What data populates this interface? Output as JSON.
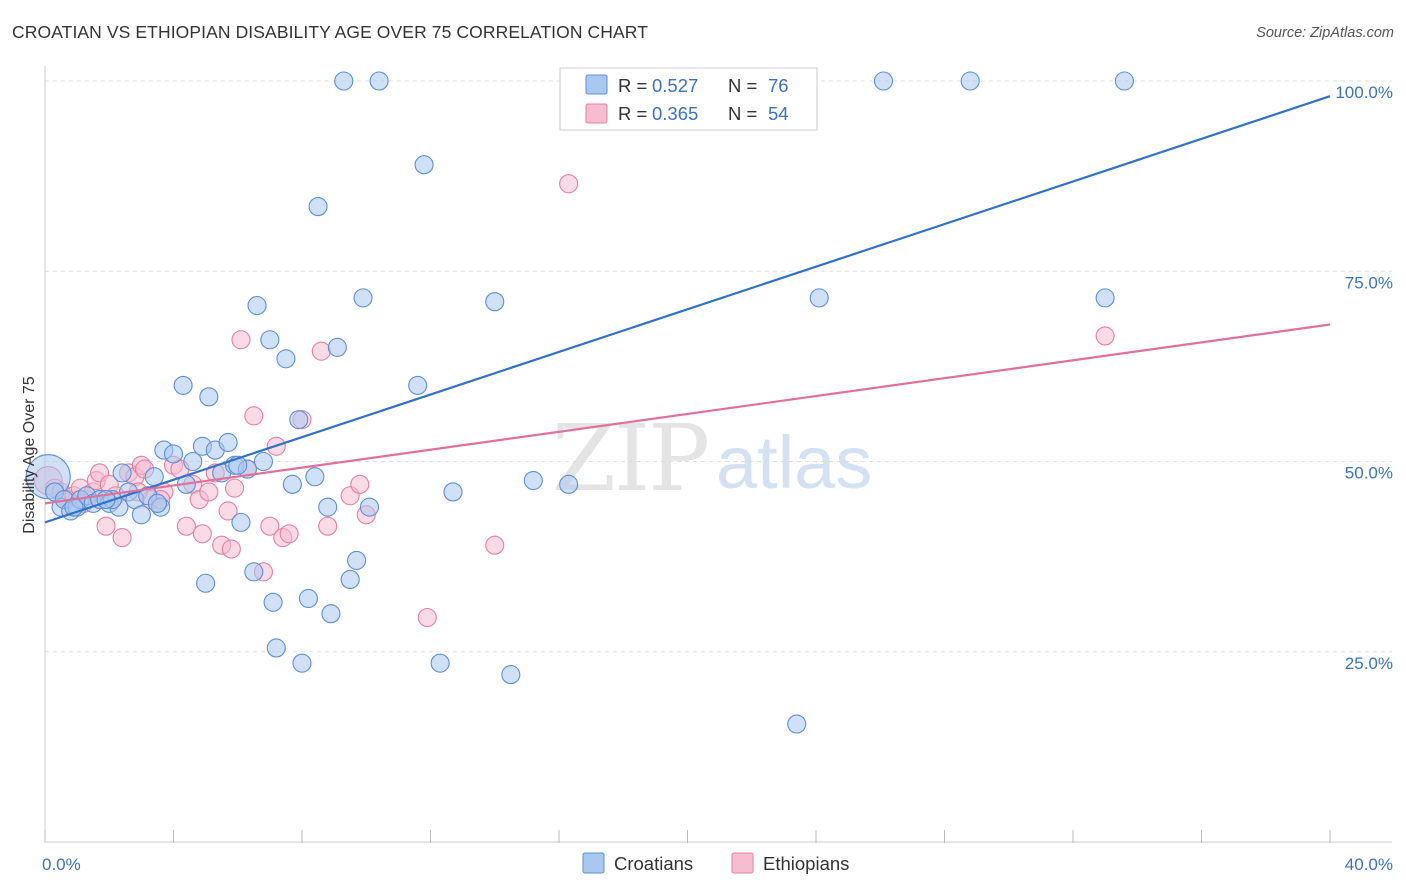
{
  "title": "CROATIAN VS ETHIOPIAN DISABILITY AGE OVER 75 CORRELATION CHART",
  "source": "Source: ZipAtlas.com",
  "watermark": {
    "zip": "ZIP",
    "atlas": "atlas"
  },
  "colors": {
    "croatians_fill": "#a9c8f0",
    "croatians_stroke": "#5b8fd6",
    "croatians_line": "#2e72cc",
    "ethiopians_fill": "#f6bcd0",
    "ethiopians_stroke": "#e57fa3",
    "ethiopians_line": "#e0719a",
    "tick_label": "#3a72c4",
    "grid": "#dddddd"
  },
  "legend": {
    "rows": [
      {
        "r_label": "R = ",
        "r_value": "0.527",
        "n_label": "N = ",
        "n_value": "76",
        "series": "croatians"
      },
      {
        "r_label": "R = ",
        "r_value": "0.365",
        "n_label": "N = ",
        "n_value": "54",
        "series": "ethiopians"
      }
    ]
  },
  "chart_data": {
    "type": "scatter",
    "title": "CROATIAN VS ETHIOPIAN DISABILITY AGE OVER 75 CORRELATION CHART",
    "xlabel": "",
    "ylabel": "Disability Age Over 75",
    "xlim": [
      0,
      40
    ],
    "ylim": [
      0,
      100
    ],
    "x_tick_labels": [
      {
        "value": 0,
        "label": "0.0%"
      },
      {
        "value": 40,
        "label": "40.0%"
      }
    ],
    "y_tick_labels": [
      {
        "value": 25,
        "label": "25.0%"
      },
      {
        "value": 50,
        "label": "50.0%"
      },
      {
        "value": 75,
        "label": "75.0%"
      },
      {
        "value": 100,
        "label": "100.0%"
      }
    ],
    "grid": true,
    "legend_position": "bottom",
    "series": [
      {
        "name": "Croatians",
        "r": 0.527,
        "n": 76,
        "trend": {
          "x": [
            0,
            40
          ],
          "y": [
            42,
            98
          ]
        },
        "points": [
          [
            0.1,
            48,
            22
          ],
          [
            0.3,
            46,
            9
          ],
          [
            0.5,
            44,
            9
          ],
          [
            0.6,
            45,
            9
          ],
          [
            0.8,
            43.5,
            9
          ],
          [
            1.0,
            44,
            9
          ],
          [
            1.1,
            45,
            9
          ],
          [
            1.3,
            45.5,
            9
          ],
          [
            1.5,
            44.5,
            9
          ],
          [
            1.7,
            45,
            9
          ],
          [
            2.0,
            44.5,
            9
          ],
          [
            2.3,
            44,
            9
          ],
          [
            2.4,
            48.5,
            9
          ],
          [
            2.6,
            46,
            9
          ],
          [
            2.8,
            45,
            9
          ],
          [
            3.0,
            43,
            9
          ],
          [
            3.2,
            45.5,
            9
          ],
          [
            3.4,
            48,
            9
          ],
          [
            3.6,
            44,
            9
          ],
          [
            3.7,
            51.5,
            9
          ],
          [
            4.0,
            51,
            9
          ],
          [
            4.3,
            60,
            9
          ],
          [
            4.6,
            50,
            9
          ],
          [
            4.9,
            52,
            9
          ],
          [
            5.1,
            58.5,
            9
          ],
          [
            5.3,
            51.5,
            9
          ],
          [
            5.5,
            48.5,
            9
          ],
          [
            5.7,
            52.5,
            9
          ],
          [
            5.9,
            49.5,
            9
          ],
          [
            6.1,
            42,
            9
          ],
          [
            6.3,
            49,
            9
          ],
          [
            6.5,
            35.5,
            9
          ],
          [
            6.6,
            70.5,
            9
          ],
          [
            6.8,
            50,
            9
          ],
          [
            7.0,
            66,
            9
          ],
          [
            7.1,
            31.5,
            9
          ],
          [
            7.2,
            25.5,
            9
          ],
          [
            7.5,
            63.5,
            9
          ],
          [
            7.7,
            47,
            9
          ],
          [
            7.9,
            55.5,
            9
          ],
          [
            8.0,
            23.5,
            9
          ],
          [
            8.2,
            32,
            9
          ],
          [
            8.4,
            48,
            9
          ],
          [
            8.5,
            83.5,
            9
          ],
          [
            8.8,
            44,
            9
          ],
          [
            8.9,
            30,
            9
          ],
          [
            9.1,
            65,
            9
          ],
          [
            9.3,
            100,
            9
          ],
          [
            9.5,
            34.5,
            9
          ],
          [
            9.7,
            37,
            9
          ],
          [
            9.9,
            71.5,
            9
          ],
          [
            10.1,
            44,
            9
          ],
          [
            10.4,
            100,
            9
          ],
          [
            11.6,
            60,
            9
          ],
          [
            11.8,
            89,
            9
          ],
          [
            12.3,
            23.5,
            9
          ],
          [
            12.7,
            46,
            9
          ],
          [
            14.0,
            71,
            9
          ],
          [
            14.5,
            22,
            9
          ],
          [
            15.2,
            47.5,
            9
          ],
          [
            16.3,
            47,
            9
          ],
          [
            17.3,
            100,
            9
          ],
          [
            22.4,
            100,
            9
          ],
          [
            23.4,
            15.5,
            9
          ],
          [
            24.1,
            71.5,
            9
          ],
          [
            26.1,
            100,
            9
          ],
          [
            28.8,
            100,
            9
          ],
          [
            33.6,
            100,
            9
          ],
          [
            33.0,
            71.5,
            9
          ],
          [
            5.0,
            34,
            9
          ],
          [
            3.5,
            44.5,
            9
          ],
          [
            2.1,
            45,
            9
          ],
          [
            1.9,
            45,
            9
          ],
          [
            4.4,
            47,
            9
          ],
          [
            6.0,
            49.5,
            9
          ],
          [
            0.9,
            44,
            9
          ]
        ]
      },
      {
        "name": "Ethiopians",
        "r": 0.365,
        "n": 54,
        "trend": {
          "x": [
            0,
            40
          ],
          "y": [
            44.5,
            68
          ]
        },
        "points": [
          [
            0.1,
            47.5,
            14
          ],
          [
            0.3,
            46.5,
            9
          ],
          [
            0.5,
            46,
            9
          ],
          [
            0.7,
            45,
            9
          ],
          [
            0.9,
            45.5,
            9
          ],
          [
            1.1,
            46.5,
            9
          ],
          [
            1.3,
            45,
            9
          ],
          [
            1.5,
            46,
            9
          ],
          [
            1.6,
            47.5,
            9
          ],
          [
            1.7,
            48.5,
            9
          ],
          [
            1.9,
            41.5,
            9
          ],
          [
            2.0,
            47,
            9
          ],
          [
            2.2,
            45.5,
            9
          ],
          [
            2.4,
            40,
            9
          ],
          [
            2.6,
            48.5,
            9
          ],
          [
            2.8,
            48,
            9
          ],
          [
            3.0,
            49.5,
            9
          ],
          [
            3.1,
            49,
            9
          ],
          [
            3.3,
            45,
            9
          ],
          [
            3.5,
            44.5,
            9
          ],
          [
            3.7,
            46,
            9
          ],
          [
            4.0,
            49.5,
            9
          ],
          [
            4.2,
            49,
            9
          ],
          [
            4.4,
            41.5,
            9
          ],
          [
            4.6,
            47,
            9
          ],
          [
            4.8,
            45,
            9
          ],
          [
            4.9,
            40.5,
            9
          ],
          [
            5.1,
            46,
            9
          ],
          [
            5.3,
            48.5,
            9
          ],
          [
            5.5,
            39,
            9
          ],
          [
            5.7,
            43.5,
            9
          ],
          [
            5.8,
            38.5,
            9
          ],
          [
            5.9,
            46.5,
            9
          ],
          [
            6.1,
            66,
            9
          ],
          [
            6.3,
            49,
            9
          ],
          [
            6.5,
            56,
            9
          ],
          [
            6.8,
            35.5,
            9
          ],
          [
            7.0,
            41.5,
            9
          ],
          [
            7.2,
            52,
            9
          ],
          [
            7.4,
            40,
            9
          ],
          [
            7.6,
            40.5,
            9
          ],
          [
            8.0,
            55.5,
            9
          ],
          [
            8.6,
            64.5,
            9
          ],
          [
            8.8,
            41.5,
            9
          ],
          [
            9.5,
            45.5,
            9
          ],
          [
            9.8,
            47,
            9
          ],
          [
            10.0,
            43,
            9
          ],
          [
            11.9,
            29.5,
            9
          ],
          [
            14.0,
            39,
            9
          ],
          [
            16.3,
            86.5,
            9
          ],
          [
            33.0,
            66.5,
            9
          ],
          [
            3.6,
            45,
            9
          ],
          [
            2.9,
            46,
            9
          ],
          [
            1.2,
            44.5,
            9
          ]
        ]
      }
    ]
  },
  "bottom_legend": [
    {
      "label": "Croatians",
      "series": "croatians"
    },
    {
      "label": "Ethiopians",
      "series": "ethiopians"
    }
  ]
}
